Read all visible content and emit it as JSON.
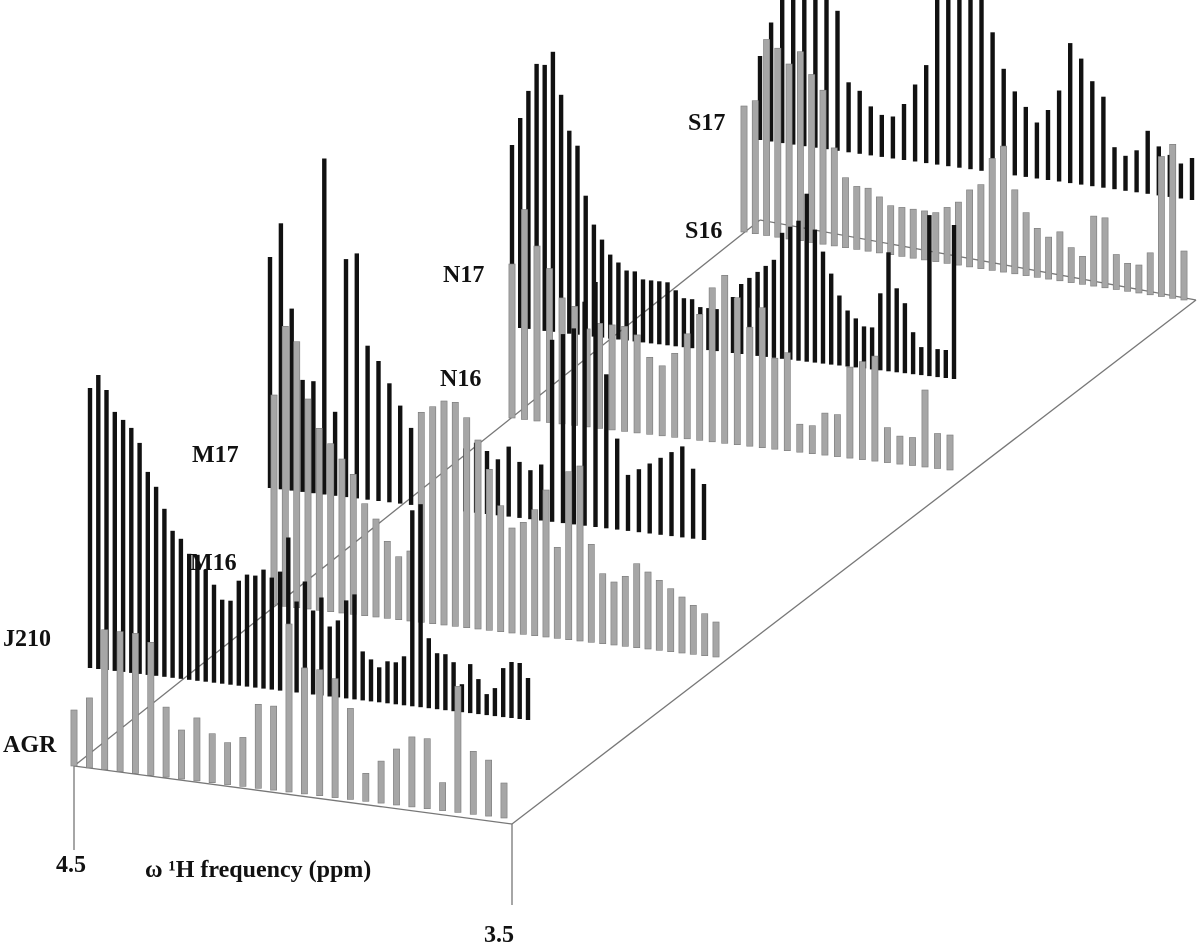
{
  "chart_data": {
    "type": "bar",
    "subtype": "3d-stacked-spectra",
    "xlabel": "ω ¹H frequency (ppm)",
    "x_tick_labels": [
      "4.5",
      "3.5"
    ],
    "xlim": [
      4.5,
      3.5
    ],
    "grid": false,
    "legend": "none",
    "colors": {
      "dark_series": "#111111",
      "light_series": "#a6a6a6",
      "frame": "#777777"
    },
    "series": [
      {
        "name": "AGR",
        "style": "light",
        "values": [
          0.4,
          0.5,
          1.0,
          1.0,
          1.0,
          0.95,
          0.5,
          0.35,
          0.45,
          0.35,
          0.3,
          0.35,
          0.6,
          0.6,
          1.2,
          0.9,
          0.9,
          0.85,
          0.65,
          0.2,
          0.3,
          0.4,
          0.5,
          0.5,
          0.2,
          0.9,
          0.45,
          0.4,
          0.25
        ]
      },
      {
        "name": "J210",
        "style": "dark",
        "values": [
          2.0,
          2.1,
          2.0,
          1.85,
          1.8,
          1.75,
          1.65,
          1.45,
          1.35,
          1.2,
          1.05,
          1.0,
          0.9,
          0.9,
          0.8,
          0.7,
          0.6,
          0.6,
          0.75,
          0.8,
          0.8,
          0.85,
          0.8,
          0.85,
          1.1,
          0.65,
          0.8,
          0.6,
          0.7,
          0.5,
          0.55,
          0.7,
          0.75,
          0.35,
          0.3,
          0.25,
          0.3,
          0.3,
          0.35,
          1.4,
          1.45,
          0.5,
          0.4,
          0.4,
          0.35,
          0.2,
          0.35,
          0.25,
          0.15,
          0.2,
          0.35,
          0.4,
          0.4,
          0.3
        ]
      },
      {
        "name": "M16",
        "style": "light",
        "values": [
          1.5,
          2.0,
          1.9,
          1.5,
          1.3,
          1.2,
          1.1,
          1.0,
          0.8,
          0.7,
          0.55,
          0.45,
          0.5,
          1.5,
          1.55,
          1.6,
          1.6,
          1.5,
          1.35,
          1.15,
          0.9,
          0.75,
          0.8,
          0.9,
          1.05,
          0.65,
          1.2,
          1.25,
          0.7,
          0.5,
          0.45,
          0.5,
          0.6,
          0.55,
          0.5,
          0.45,
          0.4,
          0.35,
          0.3,
          0.25
        ]
      },
      {
        "name": "M17",
        "style": "dark",
        "values": [
          1.65,
          1.9,
          1.3,
          0.8,
          0.8,
          2.4,
          0.6,
          1.7,
          1.75,
          1.1,
          1.0,
          0.85,
          0.7,
          0.55,
          0.5,
          0.5,
          0.4,
          0.45,
          0.45,
          0.5,
          0.45,
          0.4,
          0.5,
          0.4,
          0.35,
          0.4,
          1.3,
          1.35,
          1.4,
          1.6,
          1.75,
          1.1,
          0.65,
          0.4,
          0.45,
          0.5,
          0.55,
          0.6,
          0.65,
          0.5,
          0.4
        ]
      },
      {
        "name": "N16",
        "style": "light",
        "values": [
          1.1,
          1.5,
          1.25,
          1.1,
          0.9,
          0.85,
          0.7,
          0.75,
          0.75,
          0.75,
          0.7,
          0.55,
          0.5,
          0.6,
          0.75,
          0.9,
          1.1,
          1.2,
          1.05,
          0.85,
          1.0,
          0.65,
          0.7,
          0.2,
          0.2,
          0.3,
          0.3,
          0.65,
          0.7,
          0.75,
          0.25,
          0.2,
          0.2,
          0.55,
          0.25,
          0.25
        ]
      },
      {
        "name": "N17",
        "style": "dark",
        "values": [
          1.3,
          1.5,
          1.7,
          1.9,
          1.9,
          2.0,
          1.7,
          1.45,
          1.35,
          1.0,
          0.8,
          0.7,
          0.6,
          0.55,
          0.5,
          0.5,
          0.45,
          0.45,
          0.45,
          0.45,
          0.4,
          0.35,
          0.35,
          0.3,
          0.3,
          0.3,
          0.4,
          0.4,
          0.5,
          0.55,
          0.6,
          0.65,
          0.7,
          0.9,
          0.95,
          1.0,
          1.2,
          0.95,
          0.8,
          0.65,
          0.5,
          0.4,
          0.35,
          0.3,
          0.3,
          0.55,
          0.85,
          0.6,
          0.5,
          0.3,
          0.2,
          1.15,
          0.2,
          0.2,
          1.1
        ]
      },
      {
        "name": "S16",
        "style": "light",
        "values": [
          0.9,
          0.95,
          1.4,
          1.35,
          1.25,
          1.35,
          1.2,
          1.1,
          0.7,
          0.5,
          0.45,
          0.45,
          0.4,
          0.35,
          0.35,
          0.35,
          0.35,
          0.35,
          0.4,
          0.45,
          0.55,
          0.6,
          0.8,
          0.9,
          0.6,
          0.45,
          0.35,
          0.3,
          0.35,
          0.25,
          0.2,
          0.5,
          0.5,
          0.25,
          0.2,
          0.2,
          0.3,
          1.0,
          1.1,
          0.35
        ]
      },
      {
        "name": "S17",
        "style": "dark",
        "values": [
          0.6,
          0.85,
          1.05,
          2.05,
          1.6,
          1.45,
          1.2,
          1.0,
          0.5,
          0.45,
          0.35,
          0.3,
          0.3,
          0.4,
          0.55,
          0.7,
          1.3,
          1.3,
          1.3,
          1.35,
          1.25,
          1.0,
          0.75,
          0.6,
          0.5,
          0.4,
          0.5,
          0.65,
          1.0,
          0.9,
          0.75,
          0.65,
          0.3,
          0.25,
          0.3,
          0.45,
          0.35,
          0.3,
          0.25,
          0.3
        ]
      }
    ]
  }
}
